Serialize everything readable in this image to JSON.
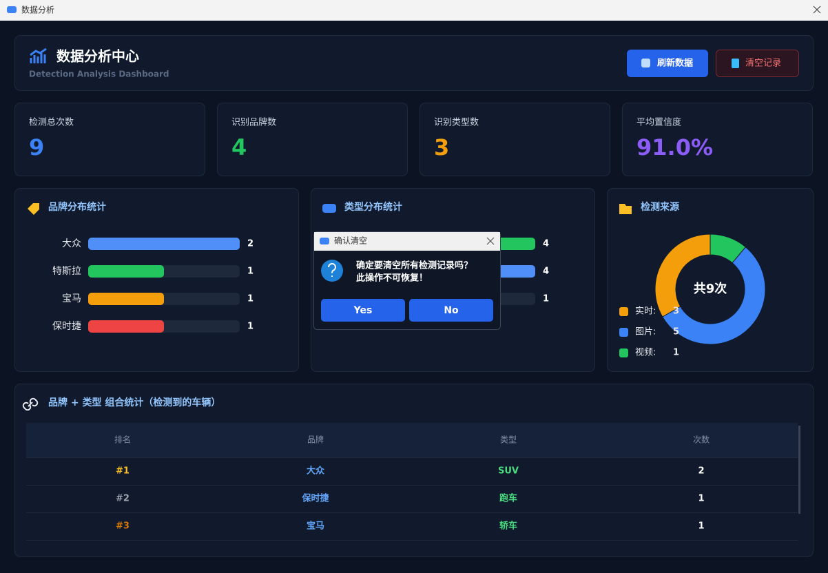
{
  "window": {
    "title": "数据分析"
  },
  "header": {
    "title": "数据分析中心",
    "subtitle": "Detection Analysis Dashboard",
    "buttons": [
      "刷新数据",
      "清空记录"
    ]
  },
  "stats": [
    {
      "label": "检测总次数",
      "value": 9,
      "color": "#3b82f6"
    },
    {
      "label": "识别品牌数",
      "value": 4,
      "color": "#22c55e"
    },
    {
      "label": "识别类型数",
      "value": 3,
      "color": "#f59e0b"
    },
    {
      "label": "平均置信度",
      "value": 91.0,
      "value_label": "91.0%",
      "color": "#8b5cf6"
    }
  ],
  "chart_data": [
    {
      "type": "hbar",
      "title": "品牌分布统计",
      "categories": [
        "大众",
        "特斯拉",
        "宝马",
        "保时捷"
      ],
      "values": [
        2,
        1,
        1,
        1
      ],
      "colors": [
        "#4f8ff7",
        "#22c55e",
        "#f59e0b",
        "#ef4444"
      ]
    },
    {
      "type": "hbar",
      "title": "类型分布统计",
      "categories": [
        null,
        null,
        null
      ],
      "values": [
        4,
        4,
        1
      ],
      "colors": [
        "#22c55e",
        "#4f8ff7",
        "#f59e0b"
      ]
    },
    {
      "type": "pie",
      "title": "检测来源",
      "center_label": "共9次",
      "series": [
        {
          "name": "实时:",
          "color": "#f59e0b",
          "values": 3
        },
        {
          "name": "图片:",
          "color": "#3b82f6",
          "values": 5
        },
        {
          "name": "视频:",
          "color": "#22c55e",
          "values": 1
        }
      ]
    }
  ],
  "table": {
    "title": "品牌 + 类型 组合统计（检测到的车辆）",
    "columns": [
      "排名",
      "品牌",
      "类型",
      "次数"
    ],
    "rows": [
      [
        "#1",
        "大众",
        "SUV",
        2
      ],
      [
        "#2",
        "保时捷",
        "跑车",
        1
      ],
      [
        "#3",
        "宝马",
        "轿车",
        1
      ]
    ]
  },
  "dialog": {
    "title": "确认清空",
    "message": [
      "确定要清空所有检测记录吗？",
      "此操作不可恢复！"
    ],
    "buttons": [
      "Yes",
      "No"
    ]
  }
}
